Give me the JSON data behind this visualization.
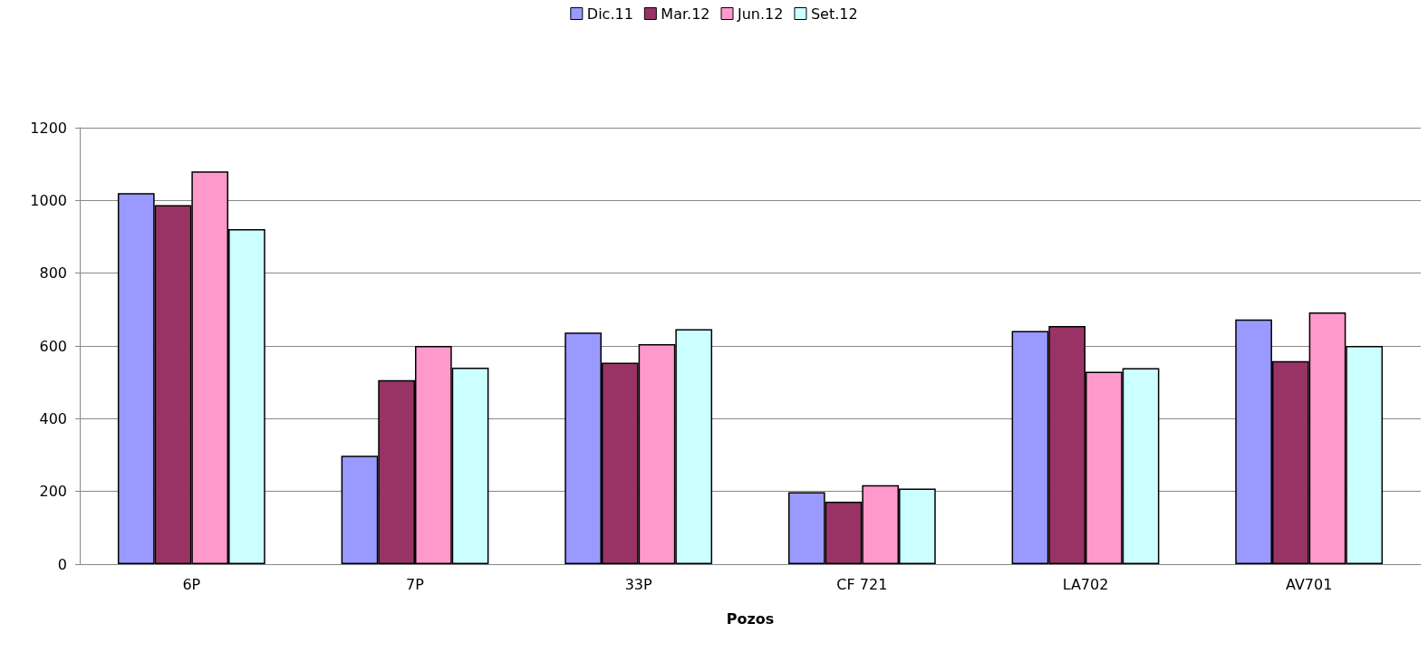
{
  "chart_data": {
    "type": "bar",
    "xlabel": "Pozos",
    "categories": [
      "6P",
      "7P",
      "33P",
      "CF 721",
      "LA702",
      "AV701"
    ],
    "series": [
      {
        "name": "Dic.11",
        "color": "#9999ff",
        "values": [
          1020,
          298,
          637,
          198,
          641,
          673
        ]
      },
      {
        "name": "Mar.12",
        "color": "#993366",
        "values": [
          987,
          506,
          554,
          172,
          655,
          558
        ]
      },
      {
        "name": "Jun.12",
        "color": "#ff99cc",
        "values": [
          1080,
          600,
          605,
          217,
          529,
          692
        ]
      },
      {
        "name": "Set.12",
        "color": "#ccffff",
        "values": [
          921,
          540,
          646,
          208,
          539,
          600
        ]
      }
    ],
    "ylim": [
      0,
      1200
    ],
    "yticks": [
      0,
      200,
      400,
      600,
      800,
      1000,
      1200
    ],
    "grid": "y",
    "legend": "top"
  }
}
